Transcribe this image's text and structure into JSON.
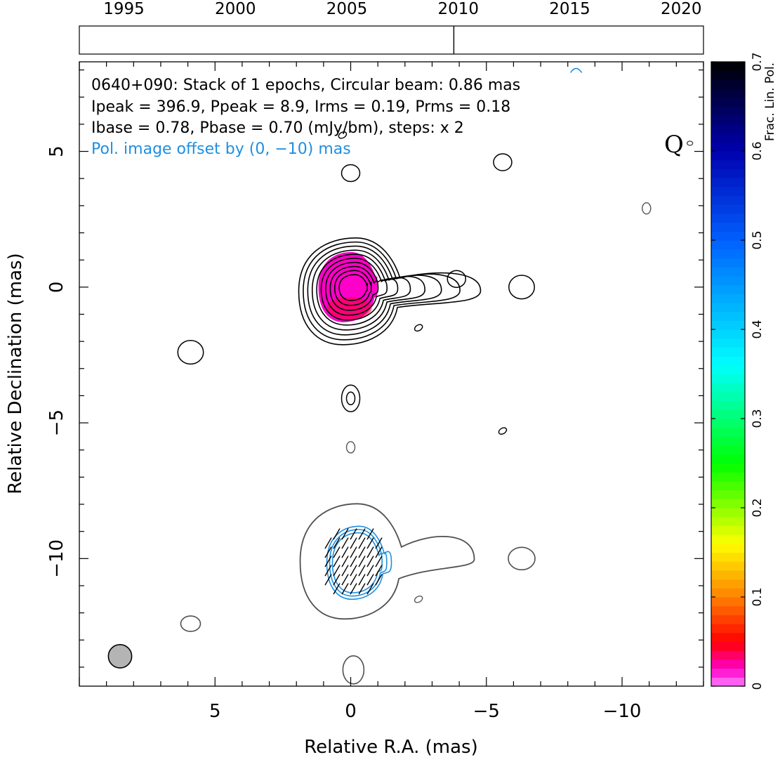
{
  "chart_data": {
    "type": "contour",
    "source": "0640+090",
    "title_lines": [
      "0640+090: Stack of 1 epochs, Circular beam: 0.86 mas",
      "Ipeak = 396.9, Ppeak = 8.9, Irms = 0.19, Prms = 0.18",
      "Ibase = 0.78, Pbase = 0.70 (mJy/bm), steps: x 2"
    ],
    "offset_note": "Pol. image offset by (0, −10) mas",
    "band_label": "Q",
    "xlabel": "Relative R.A. (mas)",
    "ylabel": "Relative Declination (mas)",
    "xlim": [
      10,
      -13
    ],
    "ylim": [
      -14.7,
      8.3
    ],
    "x_ticks": [
      5,
      0,
      -5,
      -10
    ],
    "x_tick_labels": [
      "5",
      "0",
      "−5",
      "−10"
    ],
    "y_ticks": [
      5,
      0,
      -5,
      -10
    ],
    "y_tick_labels": [
      "5",
      "0",
      "−5",
      "−10"
    ],
    "epoch_axis": {
      "range": [
        1993,
        2021
      ],
      "ticks": [
        1995,
        2000,
        2005,
        2010,
        2015,
        2020
      ],
      "tick_labels": [
        "1995",
        "2000",
        "2005",
        "2010",
        "2015",
        "2020"
      ],
      "epochs": [
        2009.8
      ]
    },
    "colorbar": {
      "label": "Frac. Lin. Pol.",
      "range": [
        0,
        0.7
      ],
      "ticks": [
        0,
        0.1,
        0.2,
        0.3,
        0.4,
        0.5,
        0.6,
        0.7
      ],
      "tick_labels": [
        "0",
        "0.1",
        "0.2",
        "0.3",
        "0.4",
        "0.5",
        "0.6",
        "0.7"
      ]
    },
    "stokes_i_contours": {
      "core": {
        "x": 0,
        "y": 0,
        "n_levels": 10
      },
      "features": [
        {
          "x": -3.9,
          "y": 0.3
        },
        {
          "x": -6.3,
          "y": 0.0
        },
        {
          "x": 5.9,
          "y": -2.4
        },
        {
          "x": 0.0,
          "y": -4.1
        },
        {
          "x": 0.0,
          "y": 4.2
        },
        {
          "x": -5.6,
          "y": 4.6
        },
        {
          "x": -10.9,
          "y": 2.9
        },
        {
          "x": -2.5,
          "y": -1.5
        },
        {
          "x": -5.6,
          "y": -5.3
        },
        {
          "x": 0.0,
          "y": -5.9
        },
        {
          "x": -12.5,
          "y": 5.3
        },
        {
          "x": 0.3,
          "y": 5.6
        }
      ]
    },
    "stokes_i_offset_copy": {
      "features": [
        {
          "x": -6.3,
          "y": -10.0
        },
        {
          "x": 5.9,
          "y": -12.4
        },
        {
          "x": -2.5,
          "y": -11.5
        },
        {
          "x": -0.1,
          "y": -14.1
        }
      ]
    },
    "frac_pol_patch": {
      "x_range": [
        1.0,
        -1.2
      ],
      "y_range": [
        -1.3,
        1.1
      ],
      "color_scale_min_value": 0.0,
      "approx_value": 0.02
    },
    "pol_contours": {
      "center_x": 0,
      "center_y": -10,
      "n_levels": 3
    },
    "evpa_ticks": {
      "region_center": [
        0,
        -10
      ],
      "approx_angle_deg_from_ns": 30
    },
    "beam": {
      "x": 8.5,
      "y": -13.6,
      "fwhm_mas": 0.86
    }
  },
  "colors": {
    "stokes_i": "#000000",
    "offset_i": "#505050",
    "pol": "#1f8fe0",
    "note": "#1f8fe0",
    "beam_fill": "#b4b4b4"
  }
}
